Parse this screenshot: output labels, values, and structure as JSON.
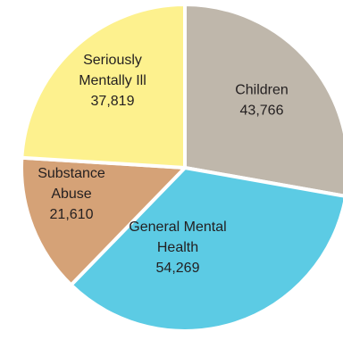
{
  "chart_data": {
    "type": "pie",
    "slices": [
      {
        "label": [
          "Children"
        ],
        "value": 43766,
        "value_label": "43,766",
        "color": "#bfb7ab"
      },
      {
        "label": [
          "General Mental",
          "Health"
        ],
        "value": 54269,
        "value_label": "54,269",
        "color": "#5ccbe4"
      },
      {
        "label": [
          "Substance",
          "Abuse"
        ],
        "value": 21610,
        "value_label": "21,610",
        "color": "#d5a277"
      },
      {
        "label": [
          "Seriously",
          "Mentally Ill"
        ],
        "value": 37819,
        "value_label": "37,819",
        "color": "#fdf18e"
      }
    ],
    "start_angle_deg": 0,
    "direction": "clockwise",
    "legend": "none"
  }
}
